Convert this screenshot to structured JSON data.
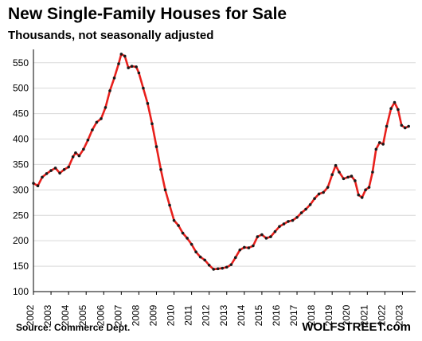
{
  "chart_data": {
    "type": "line",
    "title": "New Single-Family Houses for Sale",
    "subtitle": "Thousands, not seasonally adjusted",
    "xlabel": "",
    "ylabel": "",
    "ylim": [
      100,
      570
    ],
    "yticks": [
      100,
      150,
      200,
      250,
      300,
      350,
      400,
      450,
      500,
      550
    ],
    "xlim": [
      2002,
      2023.75
    ],
    "xticks": [
      "2002",
      "2003",
      "2004",
      "2005",
      "2006",
      "2007",
      "2008",
      "2009",
      "2010",
      "2011",
      "2012",
      "2013",
      "2014",
      "2015",
      "2016",
      "2017",
      "2018",
      "2019",
      "2020",
      "2021",
      "2022",
      "2023"
    ],
    "grid": true,
    "legend": "none",
    "line_color": "#e8201c",
    "marker_color": "#1a1a1a",
    "series": [
      {
        "values": [
          [
            2002.0,
            313
          ],
          [
            2002.25,
            308
          ],
          [
            2002.5,
            325
          ],
          [
            2002.75,
            332
          ],
          [
            2003.0,
            338
          ],
          [
            2003.25,
            343
          ],
          [
            2003.5,
            333
          ],
          [
            2003.75,
            340
          ],
          [
            2004.0,
            345
          ],
          [
            2004.25,
            365
          ],
          [
            2004.4,
            373
          ],
          [
            2004.6,
            367
          ],
          [
            2004.85,
            380
          ],
          [
            2005.1,
            398
          ],
          [
            2005.35,
            418
          ],
          [
            2005.6,
            433
          ],
          [
            2005.85,
            440
          ],
          [
            2006.1,
            462
          ],
          [
            2006.35,
            495
          ],
          [
            2006.6,
            520
          ],
          [
            2006.85,
            548
          ],
          [
            2007.0,
            567
          ],
          [
            2007.2,
            563
          ],
          [
            2007.4,
            540
          ],
          [
            2007.6,
            543
          ],
          [
            2007.85,
            542
          ],
          [
            2008.0,
            530
          ],
          [
            2008.25,
            500
          ],
          [
            2008.5,
            470
          ],
          [
            2008.75,
            430
          ],
          [
            2009.0,
            385
          ],
          [
            2009.25,
            340
          ],
          [
            2009.5,
            300
          ],
          [
            2009.75,
            270
          ],
          [
            2010.0,
            240
          ],
          [
            2010.25,
            230
          ],
          [
            2010.5,
            215
          ],
          [
            2010.75,
            205
          ],
          [
            2011.0,
            193
          ],
          [
            2011.25,
            178
          ],
          [
            2011.5,
            168
          ],
          [
            2011.75,
            162
          ],
          [
            2012.0,
            152
          ],
          [
            2012.25,
            144
          ],
          [
            2012.5,
            145
          ],
          [
            2012.75,
            146
          ],
          [
            2013.0,
            148
          ],
          [
            2013.25,
            153
          ],
          [
            2013.5,
            167
          ],
          [
            2013.75,
            182
          ],
          [
            2014.0,
            187
          ],
          [
            2014.25,
            186
          ],
          [
            2014.5,
            190
          ],
          [
            2014.75,
            208
          ],
          [
            2015.0,
            212
          ],
          [
            2015.25,
            205
          ],
          [
            2015.5,
            208
          ],
          [
            2015.75,
            218
          ],
          [
            2016.0,
            228
          ],
          [
            2016.25,
            233
          ],
          [
            2016.5,
            238
          ],
          [
            2016.75,
            240
          ],
          [
            2017.0,
            246
          ],
          [
            2017.25,
            255
          ],
          [
            2017.5,
            262
          ],
          [
            2017.75,
            271
          ],
          [
            2018.0,
            283
          ],
          [
            2018.25,
            292
          ],
          [
            2018.5,
            295
          ],
          [
            2018.75,
            305
          ],
          [
            2019.0,
            330
          ],
          [
            2019.2,
            348
          ],
          [
            2019.4,
            335
          ],
          [
            2019.65,
            322
          ],
          [
            2019.9,
            325
          ],
          [
            2020.1,
            327
          ],
          [
            2020.3,
            318
          ],
          [
            2020.5,
            290
          ],
          [
            2020.7,
            285
          ],
          [
            2020.9,
            300
          ],
          [
            2021.1,
            305
          ],
          [
            2021.3,
            335
          ],
          [
            2021.5,
            380
          ],
          [
            2021.7,
            393
          ],
          [
            2021.9,
            390
          ],
          [
            2022.1,
            425
          ],
          [
            2022.35,
            460
          ],
          [
            2022.55,
            472
          ],
          [
            2022.75,
            458
          ],
          [
            2022.95,
            427
          ],
          [
            2023.15,
            422
          ],
          [
            2023.35,
            425
          ]
        ]
      }
    ]
  },
  "footer": {
    "source": "Source: Commerce Dept.",
    "brand": "WOLFSTREET.com"
  }
}
